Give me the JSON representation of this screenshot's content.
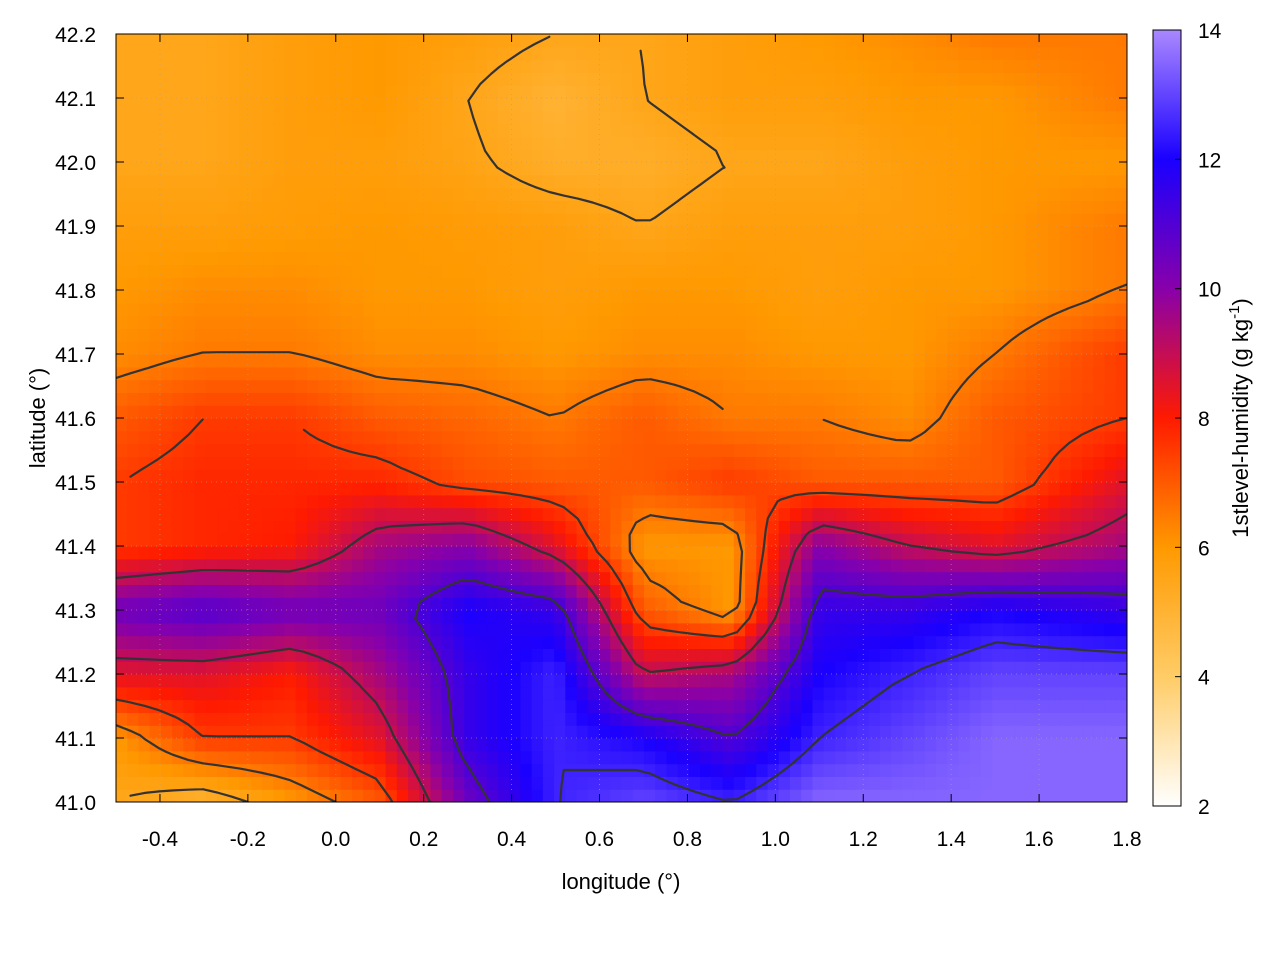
{
  "chart_data": {
    "type": "heatmap",
    "title": "",
    "xlabel": "longitude (°)",
    "ylabel": "latitude (°)",
    "colorbar_label": "1stlevel-humidity (g kg⁻¹)",
    "colorbar_label_parts": {
      "main": "1stlevel-humidity (g kg",
      "sup": "-1",
      "close": ")"
    },
    "xlim": [
      -0.5,
      1.8
    ],
    "ylim": [
      41.0,
      42.2
    ],
    "clim": [
      2,
      14
    ],
    "x_ticks": [
      -0.4,
      -0.2,
      0.0,
      0.2,
      0.4,
      0.6,
      0.8,
      1.0,
      1.2,
      1.4,
      1.6,
      1.8
    ],
    "x_tick_labels": [
      "-0.4",
      "-0.2",
      "0.0",
      "0.2",
      "0.4",
      "0.6",
      "0.8",
      "1.0",
      "1.2",
      "1.4",
      "1.6",
      "1.8"
    ],
    "y_ticks": [
      41.0,
      41.1,
      41.2,
      41.3,
      41.4,
      41.5,
      41.6,
      41.7,
      41.8,
      41.9,
      42.0,
      42.1,
      42.2
    ],
    "y_tick_labels": [
      "41.0",
      "41.1",
      "41.2",
      "41.3",
      "41.4",
      "41.5",
      "41.6",
      "41.7",
      "41.8",
      "41.9",
      "42.0",
      "42.1",
      "42.2"
    ],
    "colorbar_ticks": [
      2,
      4,
      6,
      8,
      10,
      12,
      14
    ],
    "colorbar_tick_labels": [
      "2",
      "4",
      "6",
      "8",
      "10",
      "12",
      "14"
    ],
    "colormap": [
      {
        "value": 2,
        "color": "#ffffff"
      },
      {
        "value": 4,
        "color": "#ffcc66"
      },
      {
        "value": 6,
        "color": "#ff9900"
      },
      {
        "value": 8,
        "color": "#ff1a00"
      },
      {
        "value": 10,
        "color": "#8800aa"
      },
      {
        "value": 12,
        "color": "#1a00ff"
      },
      {
        "value": 14,
        "color": "#aa88ff"
      }
    ],
    "grid": true,
    "contours": true,
    "humidity_field": {
      "lon": [
        -0.5,
        -0.3,
        -0.1,
        0.1,
        0.3,
        0.5,
        0.7,
        0.9,
        1.1,
        1.3,
        1.5,
        1.8
      ],
      "lat": [
        41.0,
        41.1,
        41.2,
        41.3,
        41.4,
        41.5,
        41.6,
        41.7,
        41.8,
        41.9,
        42.0,
        42.1,
        42.2
      ],
      "values": [
        [
          5.5,
          5.0,
          6.0,
          7.0,
          10.5,
          12.5,
          13.0,
          12.5,
          13.5,
          13.5,
          13.5,
          13.5
        ],
        [
          6.0,
          7.5,
          7.5,
          8.5,
          11.5,
          12.5,
          12.0,
          11.0,
          12.5,
          13.0,
          13.5,
          13.5
        ],
        [
          8.5,
          8.5,
          8.0,
          9.5,
          11.5,
          12.5,
          9.0,
          9.5,
          12.0,
          12.5,
          13.0,
          13.0
        ],
        [
          10.5,
          11.0,
          10.5,
          10.5,
          12.0,
          11.5,
          7.0,
          6.0,
          11.5,
          11.5,
          12.0,
          11.5
        ],
        [
          7.5,
          7.8,
          8.0,
          9.5,
          10.0,
          8.5,
          6.0,
          6.0,
          10.0,
          9.0,
          8.5,
          9.5
        ],
        [
          7.5,
          7.8,
          7.8,
          7.8,
          7.2,
          7.0,
          7.0,
          7.5,
          7.0,
          7.0,
          7.0,
          8.5
        ],
        [
          7.0,
          7.5,
          7.5,
          7.0,
          6.8,
          6.5,
          7.0,
          6.5,
          6.5,
          6.2,
          7.0,
          7.5
        ],
        [
          6.2,
          6.5,
          6.5,
          6.2,
          6.2,
          6.0,
          6.2,
          6.2,
          6.0,
          6.0,
          6.5,
          7.5
        ],
        [
          6.0,
          6.2,
          6.2,
          6.0,
          6.0,
          5.8,
          6.0,
          6.0,
          5.8,
          6.0,
          6.0,
          6.5
        ],
        [
          5.8,
          5.8,
          5.9,
          6.0,
          5.9,
          5.8,
          5.5,
          5.8,
          5.8,
          5.8,
          6.0,
          6.5
        ],
        [
          5.5,
          5.5,
          5.8,
          5.8,
          5.6,
          5.2,
          5.2,
          5.5,
          5.5,
          5.8,
          6.0,
          6.0
        ],
        [
          5.5,
          5.5,
          5.8,
          6.0,
          5.5,
          5.0,
          5.5,
          5.8,
          5.8,
          6.0,
          6.0,
          6.5
        ],
        [
          5.5,
          5.5,
          5.8,
          6.0,
          5.8,
          5.5,
          5.5,
          5.8,
          6.0,
          6.2,
          6.5,
          6.5
        ]
      ]
    }
  }
}
